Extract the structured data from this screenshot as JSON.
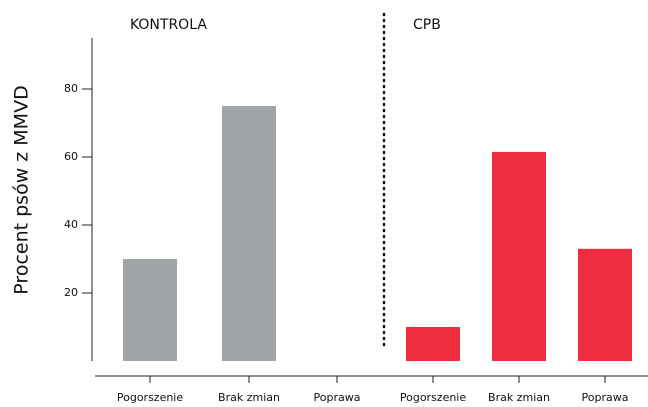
{
  "chart_data": {
    "type": "bar",
    "ylabel": "Procent psów z MMVD",
    "categories": [
      "Pogorszenie",
      "Brak zmian",
      "Poprawa",
      "Pogorszenie",
      "Brak zmian",
      "Poprawa"
    ],
    "series": [
      {
        "name": "KONTROLA",
        "color": "#a0a5a8",
        "values": [
          30,
          75,
          0,
          null,
          null,
          null
        ]
      },
      {
        "name": "CPB",
        "color": "#ee2e3e",
        "values": [
          null,
          null,
          null,
          10,
          61.5,
          33
        ]
      }
    ],
    "ylim": [
      0,
      95
    ],
    "yticks": [
      20,
      40,
      60,
      80
    ],
    "grid": false
  }
}
